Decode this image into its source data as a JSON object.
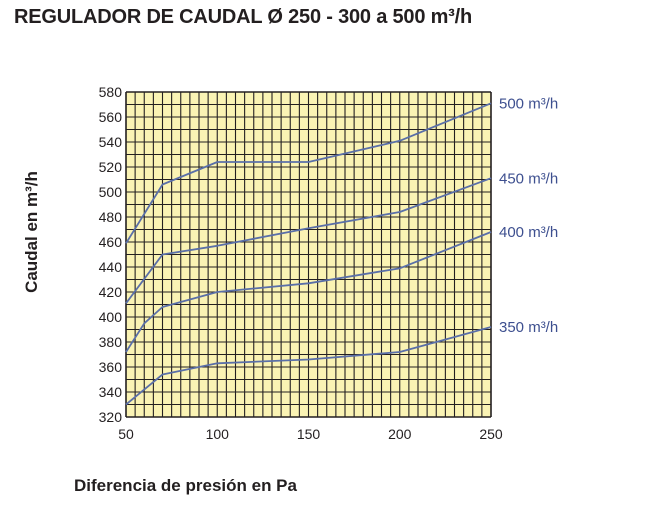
{
  "title": "REGULADOR DE CAUDAL Ø 250 - 300 a 500 m³/h",
  "chart_data": {
    "type": "line",
    "title": "REGULADOR DE CAUDAL Ø 250 - 300 a 500 m³/h",
    "xlabel": "Diferencia de presión en Pa",
    "ylabel": "Caudal en m³/h",
    "xlim": [
      50,
      250
    ],
    "ylim": [
      320,
      580
    ],
    "x_ticks": [
      "50",
      "100",
      "150",
      "200",
      "250"
    ],
    "y_ticks": [
      "320",
      "340",
      "360",
      "380",
      "400",
      "420",
      "440",
      "460",
      "480",
      "500",
      "520",
      "540",
      "560",
      "580"
    ],
    "grid": true,
    "colors": {
      "background": "#faf3b4",
      "grid": "#231f20",
      "line": "#5a6fa8",
      "label": "#3d4f8f"
    },
    "series": [
      {
        "name": "500 m³/h",
        "x": [
          50,
          70,
          100,
          150,
          200,
          250
        ],
        "y": [
          459,
          506,
          524,
          524,
          541,
          571
        ]
      },
      {
        "name": "450 m³/h",
        "x": [
          50,
          70,
          100,
          150,
          200,
          250
        ],
        "y": [
          411,
          450,
          457,
          471,
          484,
          511
        ]
      },
      {
        "name": "400 m³/h",
        "x": [
          50,
          60,
          70,
          100,
          150,
          200,
          250
        ],
        "y": [
          372,
          395,
          408,
          420,
          427,
          439,
          468
        ]
      },
      {
        "name": "350 m³/h",
        "x": [
          50,
          70,
          100,
          150,
          200,
          250
        ],
        "y": [
          330,
          354,
          363,
          366,
          372,
          392
        ]
      }
    ]
  }
}
